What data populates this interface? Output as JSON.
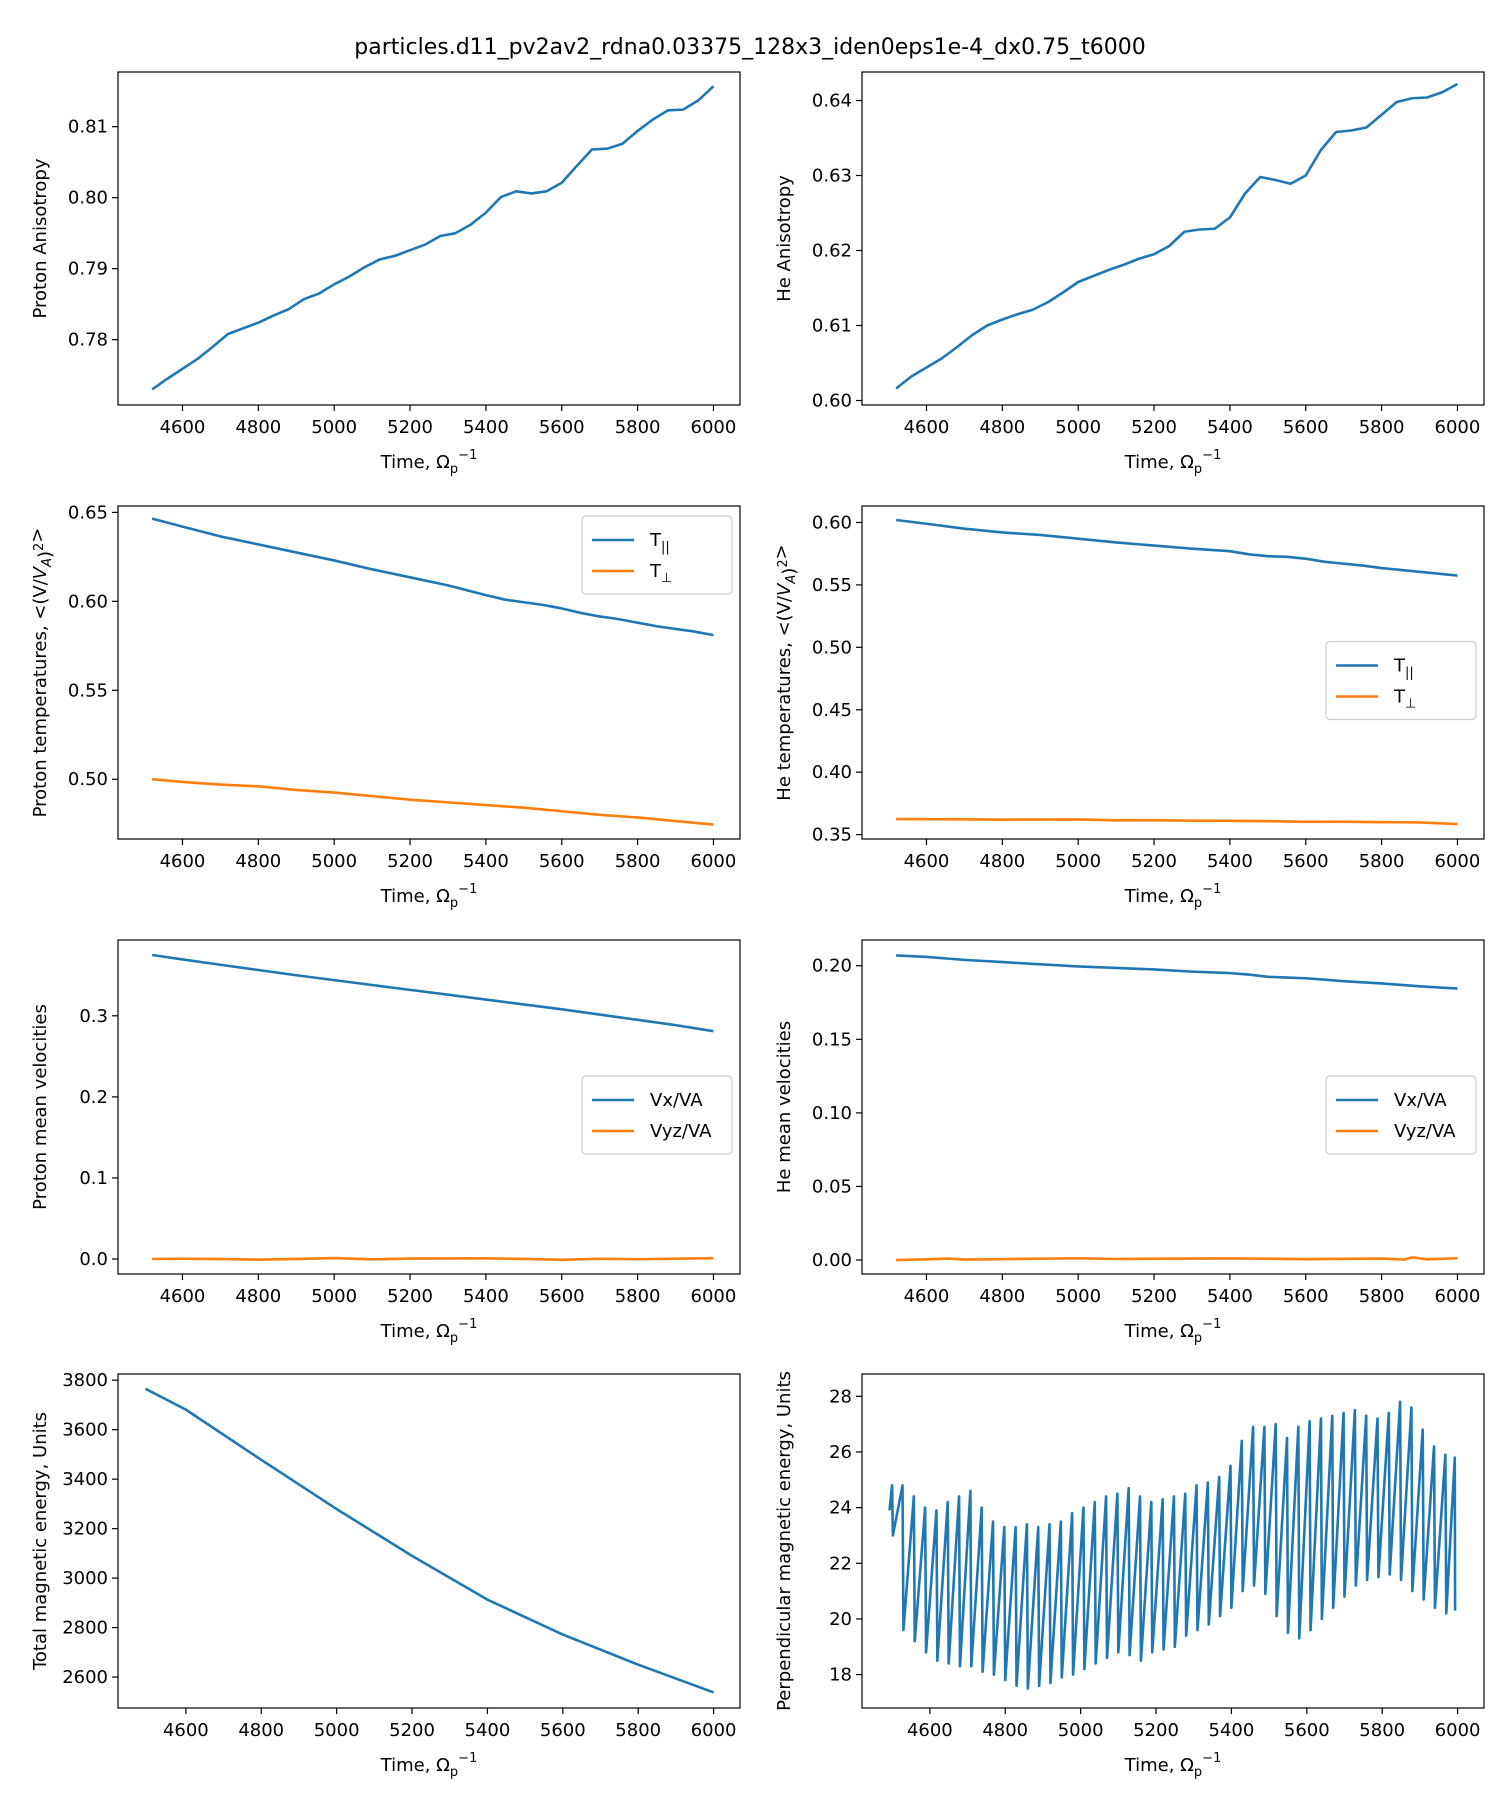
{
  "figure": {
    "title": "particles.d11_pv2av2_rdna0.03375_128x3_iden0eps1e-4_dx0.75_t6000"
  },
  "colors": {
    "series1": "#1f77b4",
    "series2": "#ff7f0e"
  },
  "chart_data": [
    {
      "type": "line",
      "xlabel": "Time, Ω_p^{-1}",
      "ylabel": "Proton Anisotropy",
      "xlim": [
        4430,
        6070
      ],
      "ylim": [
        0.7708,
        0.8177
      ],
      "xticks": [
        4600,
        4800,
        5000,
        5200,
        5400,
        5600,
        5800,
        6000
      ],
      "yticks": [
        0.78,
        0.79,
        0.8,
        0.81
      ],
      "ytick_labels": [
        "0.78",
        "0.79",
        "0.80",
        "0.81"
      ],
      "legend": null,
      "series": [
        {
          "name": "",
          "color": "#1f77b4",
          "x": [
            4520,
            4560,
            4600,
            4640,
            4680,
            4720,
            4760,
            4800,
            4840,
            4880,
            4920,
            4960,
            5000,
            5040,
            5080,
            5120,
            5160,
            5200,
            5240,
            5280,
            5320,
            5360,
            5400,
            5440,
            5480,
            5520,
            5560,
            5600,
            5640,
            5680,
            5720,
            5760,
            5800,
            5840,
            5880,
            5920,
            5960,
            6000
          ],
          "y": [
            0.773,
            0.7745,
            0.7759,
            0.7773,
            0.779,
            0.7808,
            0.7816,
            0.7824,
            0.7834,
            0.7843,
            0.7857,
            0.7865,
            0.7878,
            0.7889,
            0.7902,
            0.7913,
            0.7918,
            0.7926,
            0.7934,
            0.7946,
            0.795,
            0.7962,
            0.7979,
            0.8001,
            0.8009,
            0.8006,
            0.8009,
            0.8021,
            0.8045,
            0.8068,
            0.8069,
            0.8076,
            0.8094,
            0.811,
            0.8123,
            0.8124,
            0.8137,
            0.8157
          ]
        }
      ]
    },
    {
      "type": "line",
      "xlabel": "Time, Ω_p^{-1}",
      "ylabel": "He Anisotropy",
      "xlim": [
        4430,
        6070
      ],
      "ylim": [
        0.5994,
        0.6438
      ],
      "xticks": [
        4600,
        4800,
        5000,
        5200,
        5400,
        5600,
        5800,
        6000
      ],
      "yticks": [
        0.6,
        0.61,
        0.62,
        0.63,
        0.64
      ],
      "ytick_labels": [
        "0.60",
        "0.61",
        "0.62",
        "0.63",
        "0.64"
      ],
      "legend": null,
      "series": [
        {
          "name": "",
          "color": "#1f77b4",
          "x": [
            4520,
            4560,
            4600,
            4640,
            4680,
            4720,
            4760,
            4800,
            4840,
            4880,
            4920,
            4960,
            5000,
            5040,
            5080,
            5120,
            5160,
            5200,
            5240,
            5280,
            5320,
            5360,
            5400,
            5440,
            5480,
            5520,
            5560,
            5600,
            5640,
            5680,
            5720,
            5760,
            5800,
            5840,
            5880,
            5920,
            5960,
            6000
          ],
          "y": [
            0.6016,
            0.6032,
            0.6044,
            0.6056,
            0.6071,
            0.6087,
            0.61,
            0.6108,
            0.6115,
            0.6121,
            0.6131,
            0.6144,
            0.6158,
            0.6166,
            0.6174,
            0.6181,
            0.6189,
            0.6195,
            0.6206,
            0.6225,
            0.6228,
            0.6229,
            0.6244,
            0.6276,
            0.6298,
            0.6294,
            0.6289,
            0.63,
            0.6334,
            0.6358,
            0.636,
            0.6364,
            0.6381,
            0.6398,
            0.6403,
            0.6404,
            0.6411,
            0.6422
          ]
        }
      ]
    },
    {
      "type": "line",
      "xlabel": "Time, Ω_p^{-1}",
      "ylabel": "Proton temperatures,  <(V/V_A)^2>",
      "xlim": [
        4430,
        6070
      ],
      "ylim": [
        0.4664,
        0.6536
      ],
      "xticks": [
        4600,
        4800,
        5000,
        5200,
        5400,
        5600,
        5800,
        6000
      ],
      "yticks": [
        0.5,
        0.55,
        0.6,
        0.65
      ],
      "ytick_labels": [
        "0.50",
        "0.55",
        "0.60",
        "0.65"
      ],
      "legend": "upper right",
      "series": [
        {
          "name": "T_||",
          "color": "#1f77b4",
          "x": [
            4520,
            4600,
            4700,
            4800,
            4900,
            5000,
            5100,
            5200,
            5300,
            5400,
            5450,
            5500,
            5550,
            5600,
            5650,
            5700,
            5750,
            5800,
            5850,
            5900,
            5950,
            6000
          ],
          "y": [
            0.6465,
            0.642,
            0.6365,
            0.632,
            0.6275,
            0.623,
            0.618,
            0.6135,
            0.609,
            0.6035,
            0.601,
            0.5995,
            0.598,
            0.596,
            0.5935,
            0.5915,
            0.59,
            0.588,
            0.586,
            0.5845,
            0.583,
            0.581
          ]
        },
        {
          "name": "T_⊥",
          "color": "#ff7f0e",
          "x": [
            4520,
            4600,
            4700,
            4800,
            4900,
            5000,
            5100,
            5200,
            5300,
            5400,
            5500,
            5600,
            5700,
            5800,
            5900,
            6000
          ],
          "y": [
            0.5,
            0.4985,
            0.497,
            0.496,
            0.494,
            0.4925,
            0.4905,
            0.4885,
            0.487,
            0.4855,
            0.484,
            0.482,
            0.48,
            0.4785,
            0.4765,
            0.4745
          ]
        }
      ]
    },
    {
      "type": "line",
      "xlabel": "Time, Ω_p^{-1}",
      "ylabel": "He temperatures,  <(V/V_A)^2>",
      "xlim": [
        4430,
        6070
      ],
      "ylim": [
        0.3465,
        0.6132
      ],
      "xticks": [
        4600,
        4800,
        5000,
        5200,
        5400,
        5600,
        5800,
        6000
      ],
      "yticks": [
        0.35,
        0.4,
        0.45,
        0.5,
        0.55,
        0.6
      ],
      "ytick_labels": [
        "0.35",
        "0.40",
        "0.45",
        "0.50",
        "0.55",
        "0.60"
      ],
      "legend": "center right",
      "series": [
        {
          "name": "T_||",
          "color": "#1f77b4",
          "x": [
            4520,
            4600,
            4700,
            4800,
            4900,
            5000,
            5100,
            5200,
            5300,
            5400,
            5450,
            5500,
            5550,
            5600,
            5650,
            5700,
            5750,
            5800,
            5850,
            5900,
            5950,
            6000
          ],
          "y": [
            0.602,
            0.599,
            0.595,
            0.592,
            0.59,
            0.587,
            0.584,
            0.5815,
            0.579,
            0.577,
            0.5745,
            0.573,
            0.5725,
            0.571,
            0.5685,
            0.567,
            0.5655,
            0.5635,
            0.562,
            0.5605,
            0.559,
            0.5575
          ]
        },
        {
          "name": "T_⊥",
          "color": "#ff7f0e",
          "x": [
            4520,
            4600,
            4700,
            4800,
            4900,
            5000,
            5100,
            5200,
            5300,
            5400,
            5500,
            5600,
            5700,
            5800,
            5900,
            6000
          ],
          "y": [
            0.3625,
            0.3624,
            0.3623,
            0.362,
            0.3621,
            0.3622,
            0.3615,
            0.3616,
            0.3612,
            0.3611,
            0.3608,
            0.3603,
            0.3604,
            0.36,
            0.3598,
            0.3585
          ]
        }
      ]
    },
    {
      "type": "line",
      "xlabel": "Time, Ω_p^{-1}",
      "ylabel": "Proton mean velocities",
      "xlim": [
        4430,
        6070
      ],
      "ylim": [
        -0.0185,
        0.3935
      ],
      "xticks": [
        4600,
        4800,
        5000,
        5200,
        5400,
        5600,
        5800,
        6000
      ],
      "yticks": [
        0.0,
        0.1,
        0.2,
        0.3
      ],
      "ytick_labels": [
        "0.0",
        "0.1",
        "0.2",
        "0.3"
      ],
      "legend": "center right",
      "series": [
        {
          "name": "Vx/VA",
          "color": "#1f77b4",
          "x": [
            4520,
            4600,
            4700,
            4800,
            4900,
            5000,
            5100,
            5200,
            5300,
            5400,
            5500,
            5600,
            5700,
            5800,
            5900,
            6000
          ],
          "y": [
            0.375,
            0.3695,
            0.363,
            0.3565,
            0.35,
            0.344,
            0.338,
            0.332,
            0.326,
            0.32,
            0.314,
            0.308,
            0.3015,
            0.295,
            0.2885,
            0.281
          ]
        },
        {
          "name": "Vyz/VA",
          "color": "#ff7f0e",
          "x": [
            4520,
            4600,
            4700,
            4800,
            4900,
            5000,
            5100,
            5200,
            5300,
            5400,
            5500,
            5600,
            5700,
            5800,
            5900,
            6000
          ],
          "y": [
            0.0,
            0.0003,
            -0.0001,
            -0.0008,
            0.0001,
            0.0012,
            -0.0004,
            0.0006,
            0.0007,
            0.0009,
            0.0001,
            -0.001,
            0.0003,
            -0.0003,
            0.0004,
            0.001
          ]
        }
      ]
    },
    {
      "type": "line",
      "xlabel": "Time, Ω_p^{-1}",
      "ylabel": "He mean velocities",
      "xlim": [
        4430,
        6070
      ],
      "ylim": [
        -0.0095,
        0.2175
      ],
      "xticks": [
        4600,
        4800,
        5000,
        5200,
        5400,
        5600,
        5800,
        6000
      ],
      "yticks": [
        0.0,
        0.05,
        0.1,
        0.15,
        0.2
      ],
      "ytick_labels": [
        "0.00",
        "0.05",
        "0.10",
        "0.15",
        "0.20"
      ],
      "legend": "center right",
      "series": [
        {
          "name": "Vx/VA",
          "color": "#1f77b4",
          "x": [
            4520,
            4600,
            4700,
            4800,
            4900,
            5000,
            5100,
            5200,
            5300,
            5400,
            5450,
            5500,
            5550,
            5600,
            5650,
            5700,
            5800,
            5900,
            6000
          ],
          "y": [
            0.207,
            0.206,
            0.204,
            0.2025,
            0.201,
            0.1995,
            0.1985,
            0.1975,
            0.196,
            0.195,
            0.194,
            0.1925,
            0.192,
            0.1915,
            0.1905,
            0.1895,
            0.188,
            0.186,
            0.1845
          ]
        },
        {
          "name": "Vyz/VA",
          "color": "#ff7f0e",
          "x": [
            4520,
            4600,
            4660,
            4700,
            4800,
            4900,
            5000,
            5100,
            5200,
            5300,
            5400,
            5500,
            5600,
            5700,
            5800,
            5860,
            5880,
            5920,
            6000
          ],
          "y": [
            0.0,
            0.0005,
            0.001,
            0.0003,
            0.0006,
            0.0009,
            0.0012,
            0.0007,
            0.0009,
            0.001,
            0.0011,
            0.0009,
            0.0006,
            0.0008,
            0.001,
            0.0003,
            0.0018,
            0.0005,
            0.0012
          ]
        }
      ]
    },
    {
      "type": "line",
      "xlabel": "Time, Ω_p^{-1}",
      "ylabel": "Total magnetic energy, Units",
      "xlim": [
        4420,
        6070
      ],
      "ylim": [
        2475,
        3825
      ],
      "xticks": [
        4600,
        4800,
        5000,
        5200,
        5400,
        5600,
        5800,
        6000
      ],
      "yticks": [
        2600,
        2800,
        3000,
        3200,
        3400,
        3600,
        3800
      ],
      "ytick_labels": [
        "2600",
        "2800",
        "3000",
        "3200",
        "3400",
        "3600",
        "3800"
      ],
      "legend": null,
      "series": [
        {
          "name": "",
          "color": "#1f77b4",
          "x": [
            4493,
            4600,
            4800,
            5000,
            5200,
            5400,
            5600,
            5800,
            6000
          ],
          "y": [
            3765,
            3681,
            3478,
            3279,
            3090,
            2913,
            2772,
            2650,
            2538
          ]
        }
      ]
    },
    {
      "type": "line",
      "xlabel": "Time, Ω_p^{-1}",
      "ylabel": "Perpendicular magnetic energy, Units",
      "xlim": [
        4420,
        6070
      ],
      "ylim": [
        16.8,
        28.8
      ],
      "xticks": [
        4600,
        4800,
        5000,
        5200,
        5400,
        5600,
        5800,
        6000
      ],
      "yticks": [
        18,
        20,
        22,
        24,
        26,
        28
      ],
      "ytick_labels": [
        "18",
        "20",
        "22",
        "24",
        "26",
        "28"
      ],
      "legend": null,
      "series": [
        {
          "name": "",
          "color": "#1f77b4",
          "x": [
            4493,
            4520,
            4550,
            4580,
            4610,
            4640,
            4670,
            4700,
            4730,
            4760,
            4790,
            4820,
            4850,
            4880,
            4910,
            4940,
            4970,
            5000,
            5030,
            5060,
            5090,
            5120,
            5150,
            5180,
            5210,
            5240,
            5270,
            5300,
            5330,
            5360,
            5390,
            5420,
            5450,
            5480,
            5510,
            5540,
            5570,
            5600,
            5630,
            5660,
            5690,
            5720,
            5750,
            5780,
            5810,
            5840,
            5870,
            5900,
            5930,
            5960,
            5990,
            6000
          ],
          "x_note": "",
          "highs": [
            24.8,
            24.8,
            24.4,
            24.0,
            23.9,
            24.2,
            24.4,
            24.6,
            24.0,
            23.5,
            23.3,
            23.3,
            23.4,
            23.3,
            23.4,
            23.5,
            23.8,
            24.0,
            24.2,
            24.4,
            24.5,
            24.7,
            24.4,
            24.2,
            24.3,
            24.4,
            24.5,
            24.8,
            24.9,
            25.1,
            25.5,
            26.4,
            26.9,
            26.9,
            27.0,
            26.5,
            26.9,
            27.1,
            27.2,
            27.3,
            27.4,
            27.5,
            27.3,
            27.2,
            27.4,
            27.8,
            27.6,
            26.8,
            26.2,
            25.9,
            25.8,
            26.0
          ],
          "lows": [
            23.0,
            19.6,
            19.2,
            18.8,
            18.5,
            18.4,
            18.3,
            18.3,
            18.1,
            18.0,
            17.8,
            17.6,
            17.5,
            17.6,
            17.7,
            17.9,
            18.0,
            18.2,
            18.4,
            18.6,
            18.8,
            18.7,
            18.5,
            18.8,
            18.9,
            19.0,
            19.4,
            19.6,
            19.8,
            20.1,
            20.4,
            21.0,
            21.2,
            20.9,
            20.1,
            19.5,
            19.3,
            19.6,
            20.0,
            20.4,
            20.8,
            21.2,
            21.4,
            21.5,
            21.6,
            21.4,
            21.0,
            20.7,
            20.4,
            20.2,
            20.3,
            20.4
          ]
        }
      ]
    }
  ]
}
